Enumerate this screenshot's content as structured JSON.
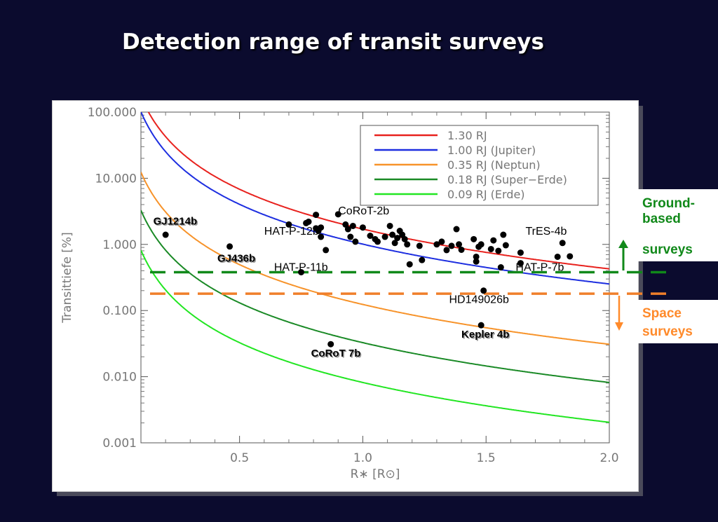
{
  "slide": {
    "title": "Detection range of transit surveys",
    "ground_label_line1": "Ground-",
    "ground_label_line2": "based",
    "ground_label_line3": "surveys",
    "space_label_line1": "Space",
    "space_label_line2": "surveys"
  },
  "colors": {
    "background": "#0b0b2e",
    "ground": "#11891a",
    "space": "#ff8a2a"
  },
  "chart_data": {
    "type": "line",
    "xlabel": "R∗ [R⊙]",
    "ylabel": "Transittiefe [%]",
    "xlim": [
      0.1,
      2.0
    ],
    "ylim": [
      0.001,
      100
    ],
    "yscale": "log",
    "x_ticks": [
      "0.5",
      "1.0",
      "1.5",
      "2.0"
    ],
    "y_ticks": [
      "100.000",
      "10.000",
      "1.000",
      "0.100",
      "0.010",
      "0.001"
    ],
    "legend_position": "top-right",
    "series": [
      {
        "name": "1.30 RJ",
        "planet_radius_rj": 1.3,
        "color": "#e8221e"
      },
      {
        "name": "1.00 RJ (Jupiter)",
        "planet_radius_rj": 1.0,
        "color": "#1d2ee0"
      },
      {
        "name": "0.35 RJ (Neptun)",
        "planet_radius_rj": 0.35,
        "color": "#f7932a"
      },
      {
        "name": "0.18 RJ (Super−Erde)",
        "planet_radius_rj": 0.18,
        "color": "#1a8a26"
      },
      {
        "name": "0.09 RJ (Erde)",
        "planet_radius_rj": 0.09,
        "color": "#22e622"
      }
    ],
    "thresholds": [
      {
        "name": "ground",
        "y": 0.38,
        "color": "#11891a"
      },
      {
        "name": "space",
        "y": 0.18,
        "color": "#f07f2a"
      }
    ],
    "points": [
      [
        0.2,
        1.4
      ],
      [
        0.46,
        0.93
      ],
      [
        0.75,
        0.38
      ],
      [
        0.87,
        0.031
      ],
      [
        1.48,
        0.06
      ],
      [
        1.49,
        0.2
      ],
      [
        0.7,
        2.0
      ],
      [
        0.77,
        2.1
      ],
      [
        0.78,
        2.2
      ],
      [
        0.81,
        1.75
      ],
      [
        0.82,
        1.6
      ],
      [
        0.83,
        1.8
      ],
      [
        0.83,
        1.3
      ],
      [
        0.85,
        0.82
      ],
      [
        0.81,
        2.8
      ],
      [
        0.9,
        2.85
      ],
      [
        0.93,
        2.0
      ],
      [
        0.94,
        1.7
      ],
      [
        0.95,
        1.3
      ],
      [
        0.96,
        1.9
      ],
      [
        0.97,
        1.1
      ],
      [
        1.0,
        1.8
      ],
      [
        1.03,
        1.35
      ],
      [
        1.05,
        1.2
      ],
      [
        1.06,
        1.1
      ],
      [
        1.09,
        1.3
      ],
      [
        1.11,
        1.9
      ],
      [
        1.12,
        1.4
      ],
      [
        1.13,
        1.05
      ],
      [
        1.14,
        1.25
      ],
      [
        1.15,
        1.6
      ],
      [
        1.16,
        1.4
      ],
      [
        1.17,
        1.2
      ],
      [
        1.18,
        1.0
      ],
      [
        1.19,
        0.5
      ],
      [
        1.23,
        0.95
      ],
      [
        1.24,
        0.58
      ],
      [
        1.3,
        1.0
      ],
      [
        1.32,
        1.1
      ],
      [
        1.34,
        0.82
      ],
      [
        1.36,
        0.95
      ],
      [
        1.38,
        1.7
      ],
      [
        1.39,
        1.0
      ],
      [
        1.4,
        0.83
      ],
      [
        1.45,
        1.2
      ],
      [
        1.46,
        0.65
      ],
      [
        1.47,
        0.92
      ],
      [
        1.48,
        1.0
      ],
      [
        1.52,
        0.85
      ],
      [
        1.53,
        1.15
      ],
      [
        1.55,
        0.8
      ],
      [
        1.56,
        0.45
      ],
      [
        1.57,
        1.4
      ],
      [
        1.58,
        0.97
      ],
      [
        1.64,
        0.75
      ],
      [
        1.64,
        0.52
      ],
      [
        1.79,
        0.65
      ],
      [
        1.81,
        1.05
      ],
      [
        1.84,
        0.66
      ],
      [
        1.46,
        0.55
      ]
    ],
    "annotations": [
      {
        "text": "CoRoT-2b",
        "x": 0.9,
        "y": 2.85
      },
      {
        "text": "HAT-P-12b",
        "x": 0.6,
        "y": 1.4
      },
      {
        "text": "TrES-4b",
        "x": 1.66,
        "y": 1.4
      },
      {
        "text": "HAT-P-11b",
        "x": 0.64,
        "y": 0.4
      },
      {
        "text": "HAT-P-7b",
        "x": 1.62,
        "y": 0.4
      },
      {
        "text": "HD149026b",
        "x": 1.35,
        "y": 0.13
      },
      {
        "text": "GJ1214b",
        "x": 0.15,
        "y": 2.0
      },
      {
        "text": "GJ436b",
        "x": 0.41,
        "y": 0.55
      },
      {
        "text": "Kepler 4b",
        "x": 1.4,
        "y": 0.039
      },
      {
        "text": "CoRoT 7b",
        "x": 0.79,
        "y": 0.02
      }
    ]
  }
}
